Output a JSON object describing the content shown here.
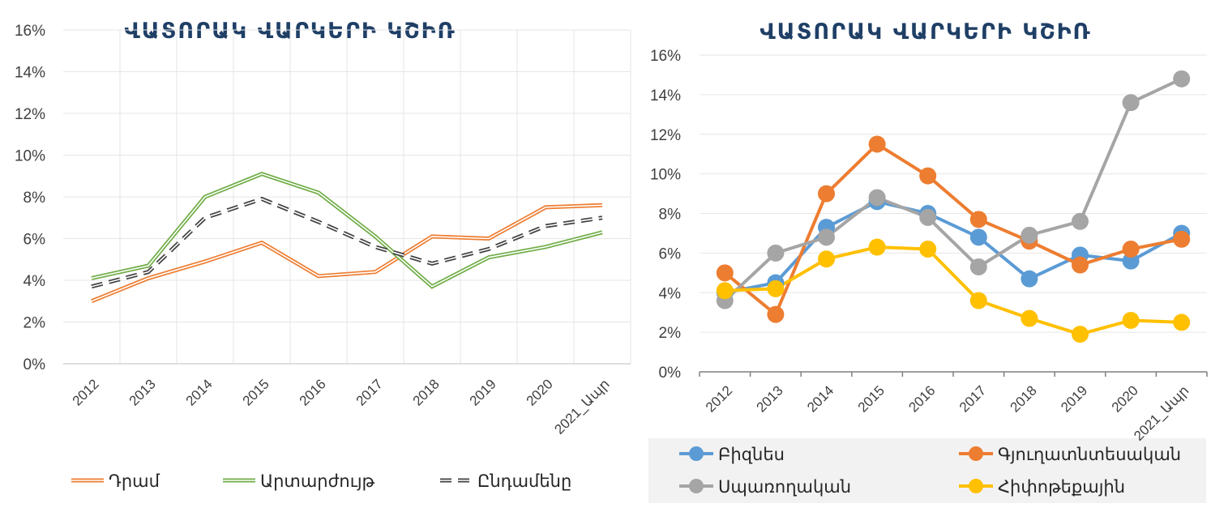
{
  "chart_data": [
    {
      "type": "line",
      "title": "ՎԱՏՈՐԱԿ ՎԱՐԿԵՐԻ ԿՇԻՌ",
      "categories": [
        "2012",
        "2013",
        "2014",
        "2015",
        "2016",
        "2017",
        "2018",
        "2019",
        "2020",
        "2021_Ապր"
      ],
      "ylim": [
        0,
        16
      ],
      "yticks": [
        "0%",
        "2%",
        "4%",
        "6%",
        "8%",
        "10%",
        "12%",
        "14%",
        "16%"
      ],
      "grid": true,
      "legend_position": "bottom",
      "series": [
        {
          "name": "Դրամ",
          "color": "#ed7d31",
          "style": "double",
          "values": [
            3.0,
            4.1,
            4.9,
            5.8,
            4.2,
            4.4,
            6.1,
            6.0,
            7.5,
            7.6
          ]
        },
        {
          "name": "Արտարժույթ",
          "color": "#70ad47",
          "style": "double",
          "values": [
            4.1,
            4.7,
            8.0,
            9.1,
            8.2,
            6.1,
            3.7,
            5.1,
            5.6,
            6.3
          ]
        },
        {
          "name": "Ընդամենը",
          "color": "#404040",
          "style": "dashed-double",
          "values": [
            3.7,
            4.4,
            7.0,
            7.9,
            6.8,
            5.6,
            4.8,
            5.5,
            6.6,
            7.0
          ]
        }
      ]
    },
    {
      "type": "line",
      "title": "ՎԱՏՈՐԱԿ ՎԱՐԿԵՐԻ ԿՇԻՌ",
      "categories": [
        "2012",
        "2013",
        "2014",
        "2015",
        "2016",
        "2017",
        "2018",
        "2019",
        "2020",
        "2021_Ապր"
      ],
      "ylim": [
        0,
        16
      ],
      "yticks": [
        "0%",
        "2%",
        "4%",
        "6%",
        "8%",
        "10%",
        "12%",
        "14%",
        "16%"
      ],
      "grid": true,
      "legend_position": "bottom",
      "series": [
        {
          "name": "Բիզնես",
          "color": "#5b9bd5",
          "values": [
            4.0,
            4.5,
            7.3,
            8.6,
            8.0,
            6.8,
            4.7,
            5.9,
            5.6,
            7.0
          ]
        },
        {
          "name": "Գյուղատնտեսական",
          "color": "#ed7d31",
          "values": [
            5.0,
            2.9,
            9.0,
            11.5,
            9.9,
            7.7,
            6.6,
            5.4,
            6.2,
            6.7
          ]
        },
        {
          "name": "Սպառողական",
          "color": "#a5a5a5",
          "values": [
            3.6,
            6.0,
            6.8,
            8.8,
            7.8,
            5.3,
            6.9,
            7.6,
            13.6,
            14.8
          ]
        },
        {
          "name": "Հիփոթեքային",
          "color": "#ffc000",
          "values": [
            4.1,
            4.2,
            5.7,
            6.3,
            6.2,
            3.6,
            2.7,
            1.9,
            2.6,
            2.5
          ]
        }
      ]
    }
  ]
}
